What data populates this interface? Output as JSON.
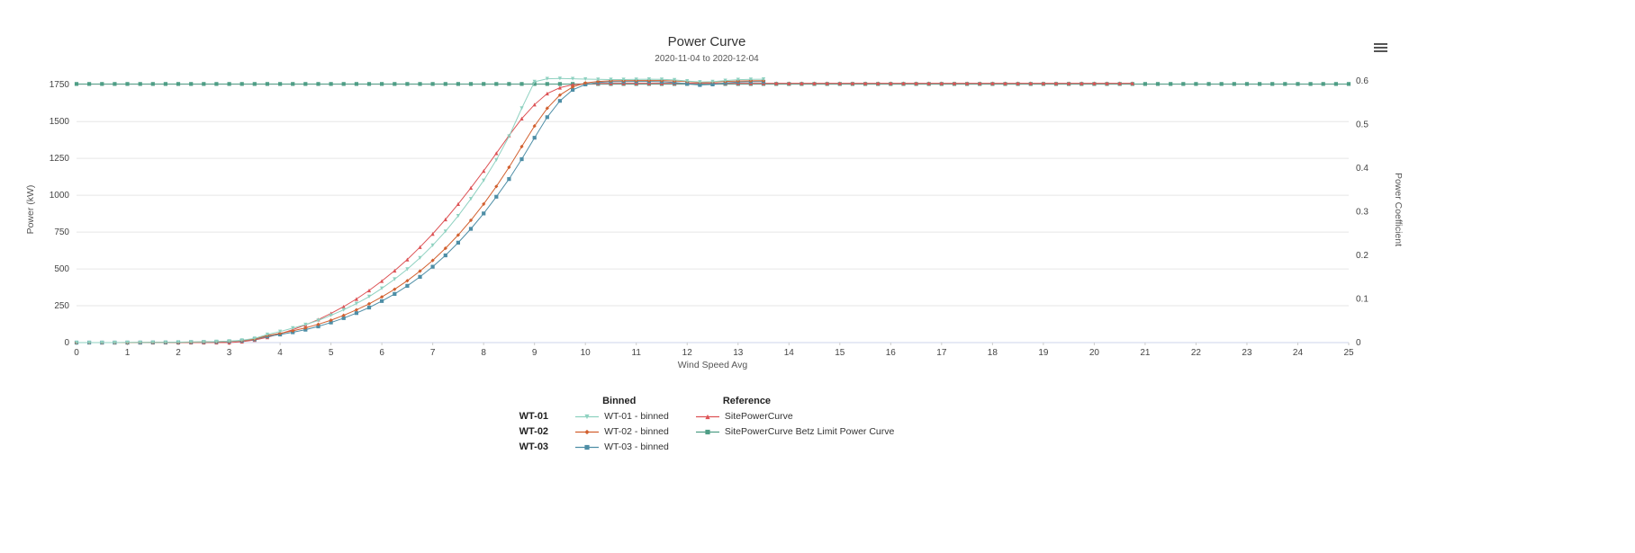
{
  "controls": {
    "menu_icon": "hamburger"
  },
  "chart_data": {
    "type": "line",
    "title": "Power Curve",
    "subtitle": "2020-11-04 to 2020-12-04",
    "grid": "horizontal-only",
    "axes": {
      "x": {
        "label": "Wind Speed Avg",
        "min": 0,
        "max": 25,
        "tick_step": 1
      },
      "y_left": {
        "label": "Power (kW)",
        "min": 0,
        "max": 1800,
        "ticks": [
          0,
          250,
          500,
          750,
          1000,
          1250,
          1500,
          1750
        ]
      },
      "y_right": {
        "label": "Power Coefficient",
        "min": 0,
        "max": 0.6,
        "ticks": [
          0,
          0.1,
          0.2,
          0.3,
          0.4,
          0.5,
          0.6
        ]
      }
    },
    "legend": {
      "position": "bottom",
      "rows": [
        "WT-01",
        "WT-02",
        "WT-03"
      ],
      "groups": [
        {
          "header": "Binned",
          "items": [
            "WT-01 - binned",
            "WT-02 - binned",
            "WT-03 - binned"
          ]
        },
        {
          "header": "Reference",
          "items": [
            "SitePowerCurve",
            "SitePowerCurve Betz Limit Power Curve"
          ]
        }
      ]
    },
    "series": [
      {
        "name": "SitePowerCurve Betz Limit Power Curve",
        "color": "#4f9e86",
        "axis": "right",
        "marker": "square",
        "points_const": {
          "from": 0,
          "to": 25,
          "step": 0.25,
          "value": 0.593
        }
      },
      {
        "name": "SitePowerCurve",
        "color": "#dd5356",
        "axis": "left",
        "marker": "triangle-up",
        "points": [
          [
            0.5,
            0
          ],
          [
            0.75,
            0
          ],
          [
            1,
            0
          ],
          [
            1.25,
            0
          ],
          [
            1.5,
            0
          ],
          [
            1.75,
            0
          ],
          [
            2,
            0
          ],
          [
            2.25,
            0
          ],
          [
            2.5,
            0
          ],
          [
            2.75,
            0
          ],
          [
            3,
            0
          ],
          [
            3.25,
            6
          ],
          [
            3.5,
            18
          ],
          [
            3.75,
            36
          ],
          [
            4,
            60
          ],
          [
            4.25,
            88
          ],
          [
            4.5,
            120
          ],
          [
            4.75,
            156
          ],
          [
            5,
            198
          ],
          [
            5.25,
            244
          ],
          [
            5.5,
            296
          ],
          [
            5.75,
            354
          ],
          [
            6,
            418
          ],
          [
            6.25,
            488
          ],
          [
            6.5,
            564
          ],
          [
            6.75,
            648
          ],
          [
            7,
            738
          ],
          [
            7.25,
            836
          ],
          [
            7.5,
            940
          ],
          [
            7.75,
            1050
          ],
          [
            8,
            1165
          ],
          [
            8.25,
            1285
          ],
          [
            8.5,
            1405
          ],
          [
            8.75,
            1520
          ],
          [
            9,
            1615
          ],
          [
            9.25,
            1690
          ],
          [
            9.5,
            1730
          ],
          [
            9.75,
            1750
          ],
          [
            10,
            1756
          ],
          [
            10.25,
            1759
          ],
          [
            10.5,
            1760
          ]
        ],
        "extend_flat": {
          "to": 20.75,
          "step": 0.25,
          "value": 1760
        }
      },
      {
        "name": "WT-03 - binned",
        "color": "#4e8ea6",
        "axis": "left",
        "marker": "square",
        "points": [
          [
            0,
            0
          ],
          [
            0.25,
            0
          ],
          [
            0.5,
            0
          ],
          [
            0.75,
            0
          ],
          [
            1,
            0
          ],
          [
            1.25,
            0
          ],
          [
            1.5,
            1
          ],
          [
            1.75,
            1
          ],
          [
            2,
            2
          ],
          [
            2.25,
            3
          ],
          [
            2.5,
            4
          ],
          [
            2.75,
            5
          ],
          [
            3,
            8
          ],
          [
            3.25,
            12
          ],
          [
            3.5,
            22
          ],
          [
            3.75,
            42
          ],
          [
            4,
            55
          ],
          [
            4.25,
            70
          ],
          [
            4.5,
            88
          ],
          [
            4.75,
            110
          ],
          [
            5,
            136
          ],
          [
            5.25,
            166
          ],
          [
            5.5,
            200
          ],
          [
            5.75,
            238
          ],
          [
            6,
            282
          ],
          [
            6.25,
            330
          ],
          [
            6.5,
            385
          ],
          [
            6.75,
            446
          ],
          [
            7,
            515
          ],
          [
            7.25,
            592
          ],
          [
            7.5,
            678
          ],
          [
            7.75,
            772
          ],
          [
            8,
            876
          ],
          [
            8.25,
            990
          ],
          [
            8.5,
            1110
          ],
          [
            8.75,
            1245
          ],
          [
            9,
            1390
          ],
          [
            9.25,
            1530
          ],
          [
            9.5,
            1640
          ],
          [
            9.75,
            1715
          ],
          [
            10,
            1752
          ],
          [
            10.25,
            1765
          ],
          [
            10.5,
            1770
          ],
          [
            10.75,
            1771
          ],
          [
            11,
            1772
          ],
          [
            11.25,
            1772
          ],
          [
            11.5,
            1770
          ],
          [
            11.75,
            1765
          ],
          [
            12,
            1756
          ],
          [
            12.25,
            1748
          ],
          [
            12.5,
            1752
          ],
          [
            12.75,
            1762
          ],
          [
            13,
            1768
          ],
          [
            13.25,
            1770
          ],
          [
            13.5,
            1771
          ]
        ]
      },
      {
        "name": "WT-02 - binned",
        "color": "#d2602f",
        "axis": "left",
        "marker": "diamond",
        "points": [
          [
            0,
            0
          ],
          [
            0.25,
            0
          ],
          [
            0.5,
            0
          ],
          [
            0.75,
            0
          ],
          [
            1,
            0
          ],
          [
            1.25,
            1
          ],
          [
            1.5,
            1
          ],
          [
            1.75,
            2
          ],
          [
            2,
            2
          ],
          [
            2.25,
            3
          ],
          [
            2.5,
            4
          ],
          [
            2.75,
            6
          ],
          [
            3,
            9
          ],
          [
            3.25,
            14
          ],
          [
            3.5,
            24
          ],
          [
            3.75,
            48
          ],
          [
            4,
            62
          ],
          [
            4.25,
            80
          ],
          [
            4.5,
            100
          ],
          [
            4.75,
            124
          ],
          [
            5,
            152
          ],
          [
            5.25,
            185
          ],
          [
            5.5,
            222
          ],
          [
            5.75,
            263
          ],
          [
            6,
            310
          ],
          [
            6.25,
            362
          ],
          [
            6.5,
            420
          ],
          [
            6.75,
            485
          ],
          [
            7,
            558
          ],
          [
            7.25,
            640
          ],
          [
            7.5,
            730
          ],
          [
            7.75,
            830
          ],
          [
            8,
            940
          ],
          [
            8.25,
            1060
          ],
          [
            8.5,
            1190
          ],
          [
            8.75,
            1330
          ],
          [
            9,
            1470
          ],
          [
            9.25,
            1590
          ],
          [
            9.5,
            1680
          ],
          [
            9.75,
            1735
          ],
          [
            10,
            1762
          ],
          [
            10.25,
            1772
          ],
          [
            10.5,
            1776
          ],
          [
            10.75,
            1777
          ],
          [
            11,
            1778
          ],
          [
            11.25,
            1778
          ],
          [
            11.5,
            1778
          ],
          [
            11.75,
            1775
          ],
          [
            12,
            1772
          ],
          [
            12.25,
            1765
          ],
          [
            12.5,
            1768
          ],
          [
            12.75,
            1772
          ],
          [
            13,
            1775
          ],
          [
            13.25,
            1776
          ],
          [
            13.5,
            1777
          ]
        ]
      },
      {
        "name": "WT-01 - binned",
        "color": "#8ed1c0",
        "axis": "left",
        "marker": "triangle-down",
        "points": [
          [
            0,
            0
          ],
          [
            0.25,
            0
          ],
          [
            0.5,
            0
          ],
          [
            0.75,
            0
          ],
          [
            1,
            1
          ],
          [
            1.25,
            1
          ],
          [
            1.5,
            2
          ],
          [
            1.75,
            2
          ],
          [
            2,
            3
          ],
          [
            2.25,
            4
          ],
          [
            2.5,
            5
          ],
          [
            2.75,
            7
          ],
          [
            3,
            10
          ],
          [
            3.25,
            16
          ],
          [
            3.5,
            28
          ],
          [
            3.75,
            55
          ],
          [
            4,
            75
          ],
          [
            4.25,
            98
          ],
          [
            4.5,
            122
          ],
          [
            4.75,
            150
          ],
          [
            5,
            185
          ],
          [
            5.25,
            222
          ],
          [
            5.5,
            265
          ],
          [
            5.75,
            312
          ],
          [
            6,
            368
          ],
          [
            6.25,
            430
          ],
          [
            6.5,
            498
          ],
          [
            6.75,
            575
          ],
          [
            7,
            660
          ],
          [
            7.25,
            755
          ],
          [
            7.5,
            860
          ],
          [
            7.75,
            975
          ],
          [
            8,
            1100
          ],
          [
            8.25,
            1240
          ],
          [
            8.5,
            1400
          ],
          [
            8.75,
            1590
          ],
          [
            9,
            1770
          ],
          [
            9.25,
            1790
          ],
          [
            9.5,
            1792
          ],
          [
            9.75,
            1790
          ],
          [
            10,
            1788
          ],
          [
            10.25,
            1786
          ],
          [
            10.5,
            1785
          ],
          [
            10.75,
            1785
          ],
          [
            11,
            1786
          ],
          [
            11.25,
            1787
          ],
          [
            11.5,
            1786
          ],
          [
            11.75,
            1782
          ],
          [
            12,
            1775
          ],
          [
            12.25,
            1768
          ],
          [
            12.5,
            1770
          ],
          [
            12.75,
            1778
          ],
          [
            13,
            1784
          ],
          [
            13.25,
            1786
          ],
          [
            13.5,
            1787
          ]
        ]
      }
    ]
  }
}
